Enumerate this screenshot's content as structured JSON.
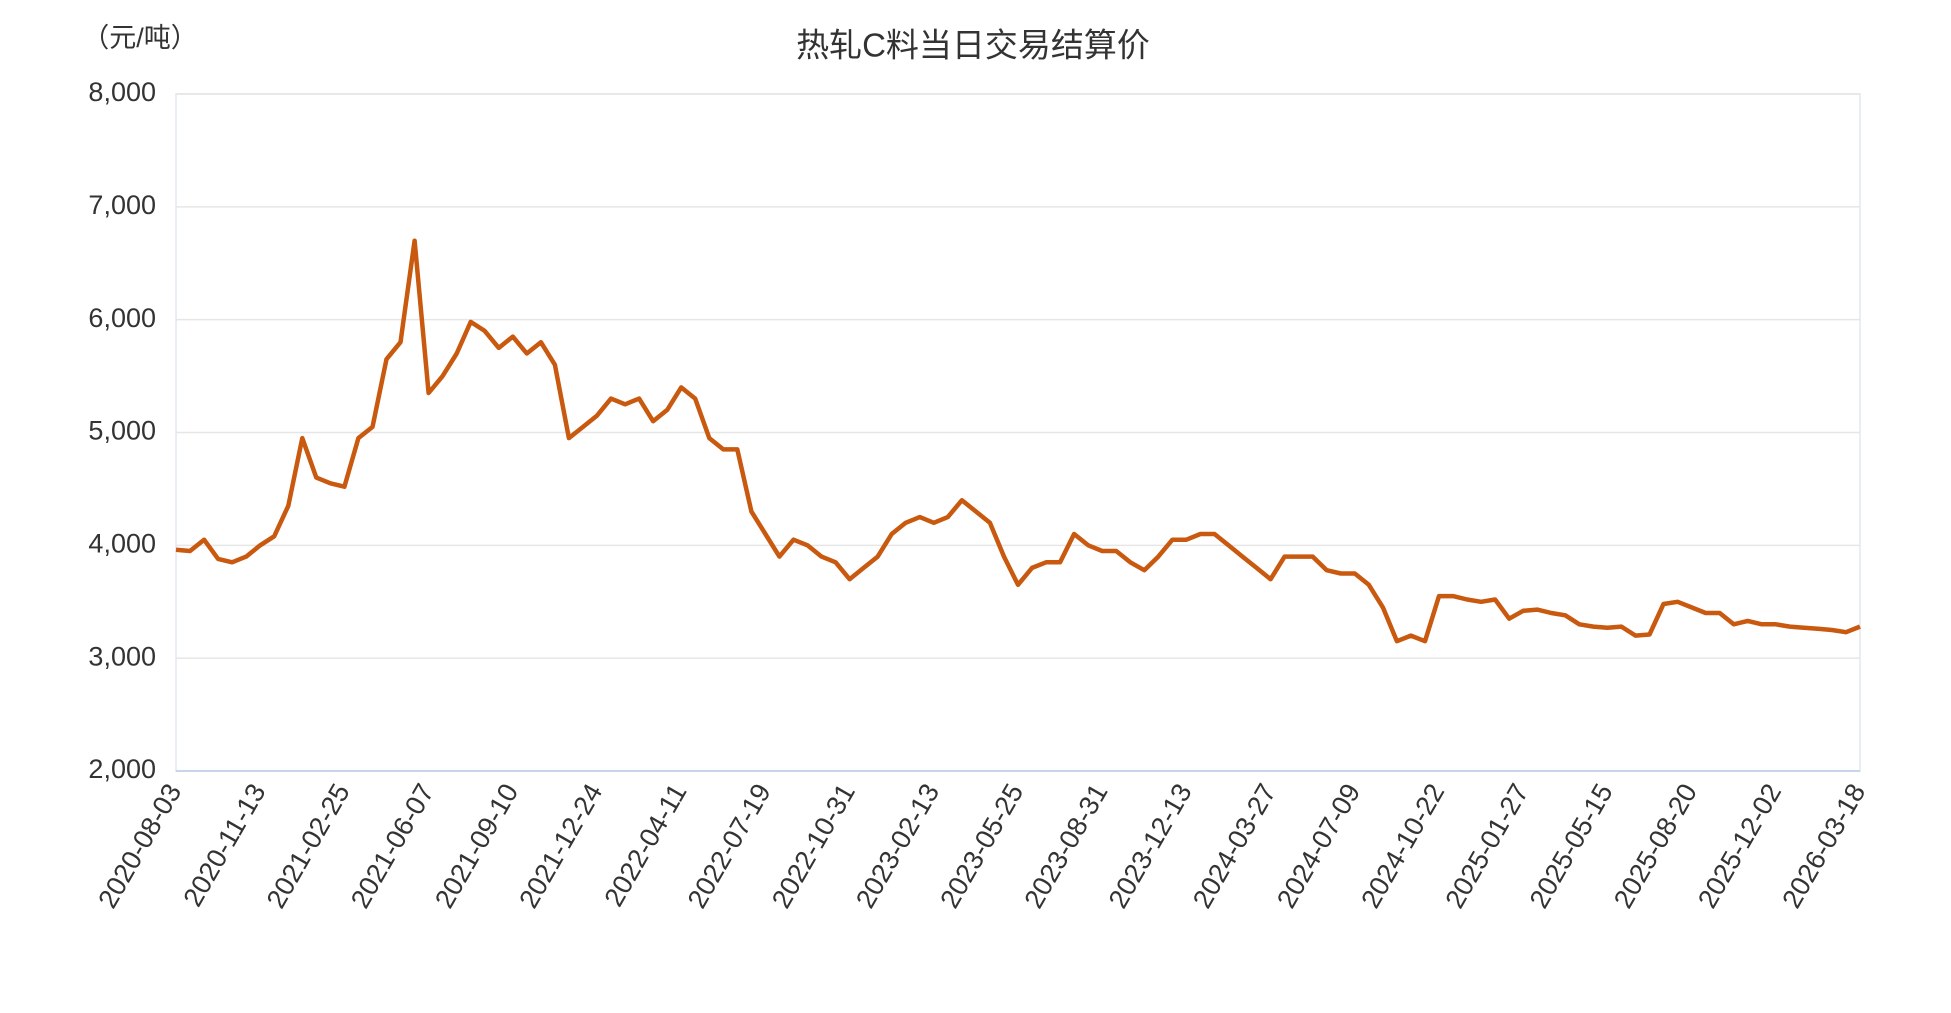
{
  "chart_data": {
    "type": "line",
    "title": "热轧C料当日交易结算价",
    "y_label": "（元/吨）",
    "categories": [
      "2020-08-03",
      null,
      null,
      null,
      null,
      null,
      "2020-11-13",
      null,
      null,
      null,
      null,
      null,
      "2021-02-25",
      null,
      null,
      null,
      null,
      null,
      "2021-06-07",
      null,
      null,
      null,
      null,
      null,
      "2021-09-10",
      null,
      null,
      null,
      null,
      null,
      "2021-12-24",
      null,
      null,
      null,
      null,
      null,
      "2022-04-11",
      null,
      null,
      null,
      null,
      null,
      "2022-07-19",
      null,
      null,
      null,
      null,
      null,
      "2022-10-31",
      null,
      null,
      null,
      null,
      null,
      "2023-02-13",
      null,
      null,
      null,
      null,
      null,
      "2023-05-25",
      null,
      null,
      null,
      null,
      null,
      "2023-08-31",
      null,
      null,
      null,
      null,
      null,
      "2023-12-13",
      null,
      null,
      null,
      null,
      null,
      "2024-03-27",
      null,
      null,
      null,
      null,
      null,
      "2024-07-09",
      null,
      null,
      null,
      null,
      null,
      "2024-10-22",
      null,
      null,
      null,
      null,
      null,
      "2025-01-27",
      null,
      null,
      null,
      null,
      null,
      "2025-05-15",
      null,
      null,
      null,
      null,
      null,
      "2025-08-20",
      null,
      null,
      null,
      null,
      null,
      "2025-12-02",
      null,
      null,
      null,
      null,
      null,
      "2026-03-18"
    ],
    "series": [
      {
        "name": "热轧C料当日交易结算价",
        "color": "#c8590f",
        "values": [
          3960,
          3950,
          4050,
          3880,
          3850,
          3900,
          4000,
          4080,
          4350,
          4950,
          4600,
          4550,
          4520,
          4950,
          5050,
          5650,
          5800,
          6700,
          5350,
          5500,
          5700,
          5980,
          5900,
          5750,
          5850,
          5700,
          5800,
          5600,
          4950,
          5050,
          5150,
          5300,
          5250,
          5300,
          5100,
          5200,
          5400,
          5300,
          4950,
          4850,
          4850,
          4300,
          4100,
          3900,
          4050,
          4000,
          3900,
          3850,
          3700,
          3800,
          3900,
          4100,
          4200,
          4250,
          4200,
          4250,
          4400,
          4300,
          4200,
          3900,
          3650,
          3800,
          3850,
          3850,
          4100,
          4000,
          3950,
          3950,
          3850,
          3780,
          3900,
          4050,
          4050,
          4100,
          4100,
          4000,
          3900,
          3800,
          3700,
          3900,
          3900,
          3900,
          3780,
          3750,
          3750,
          3650,
          3450,
          3150,
          3200,
          3150,
          3550,
          3550,
          3520,
          3500,
          3520,
          3350,
          3420,
          3430,
          3400,
          3380,
          3300,
          3280,
          3270,
          3280,
          3200,
          3210,
          3480,
          3500,
          3450,
          3400,
          3400,
          3300,
          3330,
          3300,
          3300,
          3280,
          3270,
          3260,
          3250,
          3230,
          3280
        ]
      }
    ],
    "ylim": [
      2000,
      8000
    ],
    "yticks": [
      {
        "value": 2000,
        "label": "2,000"
      },
      {
        "value": 3000,
        "label": "3,000"
      },
      {
        "value": 4000,
        "label": "4,000"
      },
      {
        "value": 5000,
        "label": "5,000"
      },
      {
        "value": 6000,
        "label": "6,000"
      },
      {
        "value": 7000,
        "label": "7,000"
      },
      {
        "value": 8000,
        "label": "8,000"
      }
    ],
    "grid": true
  }
}
